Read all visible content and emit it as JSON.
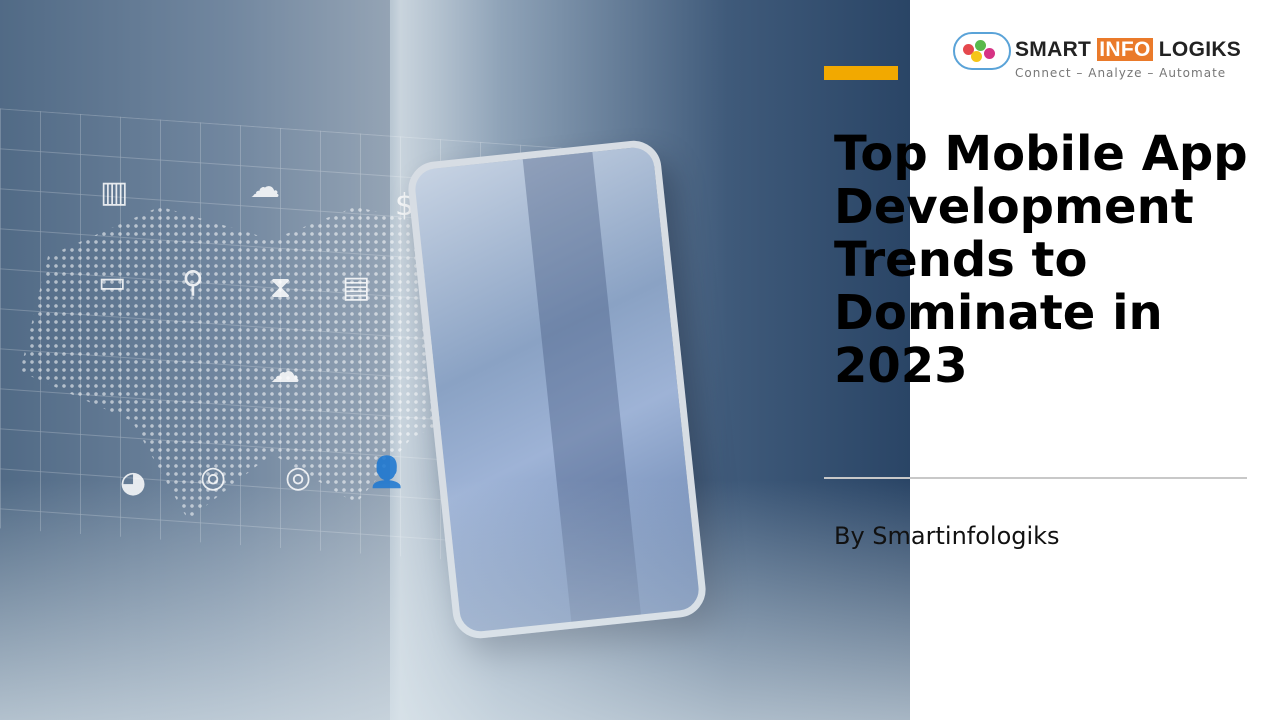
{
  "slide": {
    "title": "Top Mobile App Development Trends to Dominate in 2023",
    "byline": "By Smartinfologiks",
    "accent_color": "#f2a900"
  },
  "logo": {
    "brand_part1": "SMART ",
    "brand_part2": "INFO",
    "brand_part3": " LOGIKS",
    "tagline": "Connect  –  Analyze – Automate",
    "brand_orange": "#ea7a2a"
  },
  "hero_image": {
    "icons": [
      "dollar-icon",
      "chart-icon",
      "monitor-icon",
      "search-dollar-icon",
      "hourglass-icon",
      "document-icon",
      "cloud-icon",
      "target-icon",
      "pie-chart-icon",
      "user-icon"
    ]
  }
}
